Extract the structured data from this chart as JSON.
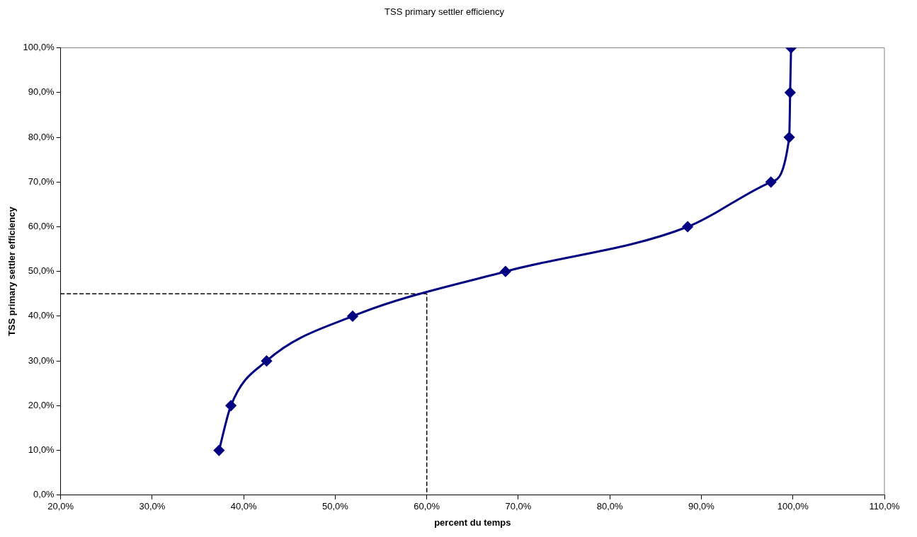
{
  "chart_data": {
    "type": "line",
    "title": "TSS primary settler efficiency",
    "xlabel": "percent du temps",
    "ylabel": "TSS primary settler efficiency",
    "xlim": [
      20,
      110
    ],
    "ylim": [
      0,
      100
    ],
    "xticks": [
      {
        "value": 20,
        "label": "20,0%"
      },
      {
        "value": 30,
        "label": "30,0%"
      },
      {
        "value": 40,
        "label": "40,0%"
      },
      {
        "value": 50,
        "label": "50,0%"
      },
      {
        "value": 60,
        "label": "60,0%"
      },
      {
        "value": 70,
        "label": "70,0%"
      },
      {
        "value": 80,
        "label": "80,0%"
      },
      {
        "value": 90,
        "label": "90,0%"
      },
      {
        "value": 100,
        "label": "100,0%"
      },
      {
        "value": 110,
        "label": "110,0%"
      }
    ],
    "yticks": [
      {
        "value": 0,
        "label": "0,0%"
      },
      {
        "value": 10,
        "label": "10,0%"
      },
      {
        "value": 20,
        "label": "20,0%"
      },
      {
        "value": 30,
        "label": "30,0%"
      },
      {
        "value": 40,
        "label": "40,0%"
      },
      {
        "value": 50,
        "label": "50,0%"
      },
      {
        "value": 60,
        "label": "60,0%"
      },
      {
        "value": 70,
        "label": "70,0%"
      },
      {
        "value": 80,
        "label": "80,0%"
      },
      {
        "value": 90,
        "label": "90,0%"
      },
      {
        "value": 100,
        "label": "100,0%"
      }
    ],
    "grid": false,
    "legend": false,
    "series": [
      {
        "color": "#000080",
        "marker": "diamond",
        "line_style": "solid",
        "x": [
          37.3,
          38.6,
          42.5,
          51.9,
          68.6,
          88.5,
          97.6,
          99.6,
          99.7,
          99.8
        ],
        "values": [
          10,
          20,
          30,
          40,
          50,
          60,
          70,
          80,
          90,
          100
        ]
      },
      {
        "color": "#000000",
        "marker": "none",
        "line_style": "dashed",
        "x": [
          20,
          60,
          60
        ],
        "values": [
          45,
          45,
          0
        ]
      }
    ]
  }
}
